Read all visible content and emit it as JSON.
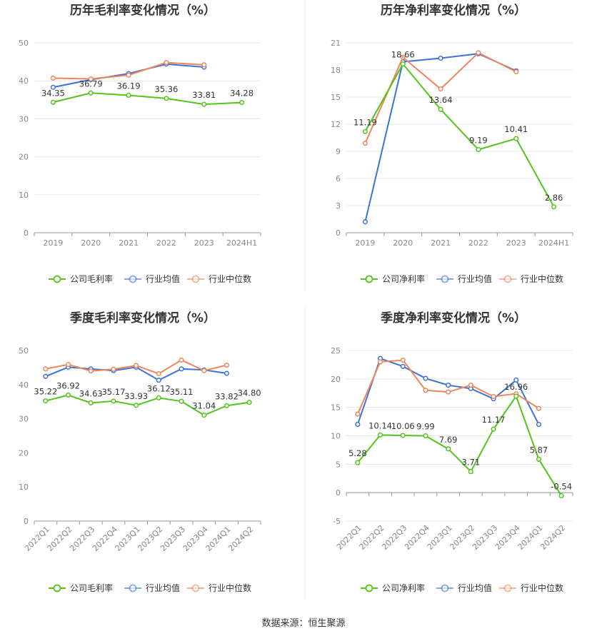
{
  "source": "数据来源：恒生聚源",
  "colors": {
    "company": "#52c41a",
    "avg": "#3b73d9",
    "median": "#f0845a",
    "grid": "#e8e8e8",
    "axis": "#999999"
  },
  "chart_data": [
    {
      "type": "line",
      "title": "历年毛利率变化情况（%）",
      "categories": [
        "2019",
        "2020",
        "2021",
        "2022",
        "2023",
        "2024H1"
      ],
      "ylim": [
        0,
        50
      ],
      "yticks": [
        0,
        10,
        20,
        30,
        40,
        50
      ],
      "grid": true,
      "legend": "bottom",
      "rotate_x": false,
      "series": [
        {
          "name": "公司毛利率",
          "key": "company",
          "values": [
            34.35,
            36.79,
            36.19,
            35.36,
            33.81,
            34.28
          ],
          "labels": [
            "34.35",
            "36.79",
            "36.19",
            "35.36",
            "33.81",
            "34.28"
          ]
        },
        {
          "name": "行业均值",
          "key": "avg",
          "values": [
            38.3,
            40.3,
            41.9,
            44.4,
            43.6,
            null
          ]
        },
        {
          "name": "行业中位数",
          "key": "median",
          "values": [
            40.7,
            40.5,
            41.5,
            44.8,
            44.2,
            null
          ]
        }
      ]
    },
    {
      "type": "line",
      "title": "历年净利率变化情况（%）",
      "categories": [
        "2019",
        "2020",
        "2021",
        "2022",
        "2023",
        "2024H1"
      ],
      "ylim": [
        0,
        21
      ],
      "yticks": [
        0,
        3,
        6,
        9,
        12,
        15,
        18,
        21
      ],
      "grid": true,
      "legend": "bottom",
      "rotate_x": false,
      "series": [
        {
          "name": "公司净利率",
          "key": "company",
          "values": [
            11.19,
            18.66,
            13.64,
            9.19,
            10.41,
            2.86
          ],
          "labels": [
            "11.19",
            "18.66",
            "13.64",
            "9.19",
            "10.41",
            "2.86"
          ]
        },
        {
          "name": "行业均值",
          "key": "avg",
          "values": [
            1.2,
            18.9,
            19.3,
            19.8,
            17.9,
            null
          ]
        },
        {
          "name": "行业中位数",
          "key": "median",
          "values": [
            9.9,
            19.4,
            15.9,
            19.9,
            17.8,
            null
          ]
        }
      ]
    },
    {
      "type": "line",
      "title": "季度毛利率变化情况（%）",
      "categories": [
        "2022Q1",
        "2022Q2",
        "2022Q3",
        "2022Q4",
        "2023Q1",
        "2023Q2",
        "2023Q3",
        "2023Q4",
        "2024Q1",
        "2024Q2"
      ],
      "ylim": [
        0,
        50
      ],
      "yticks": [
        0,
        10,
        20,
        30,
        40,
        50
      ],
      "grid": false,
      "legend": "bottom",
      "rotate_x": true,
      "series": [
        {
          "name": "公司毛利率",
          "key": "company",
          "values": [
            35.22,
            36.92,
            34.63,
            35.17,
            33.93,
            36.12,
            35.11,
            31.04,
            33.82,
            34.8
          ],
          "labels": [
            "35.22",
            "36.92",
            "34.63",
            "35.17",
            "33.93",
            "36.12",
            "35.11",
            "31.04",
            "33.82",
            "34.80"
          ]
        },
        {
          "name": "行业均值",
          "key": "avg",
          "values": [
            42.4,
            45.1,
            44.6,
            44.1,
            45.1,
            41.3,
            44.6,
            44.3,
            43.3,
            null
          ]
        },
        {
          "name": "行业中位数",
          "key": "median",
          "values": [
            44.6,
            45.9,
            44.0,
            44.5,
            45.6,
            43.2,
            47.2,
            44.1,
            45.7,
            null
          ]
        }
      ]
    },
    {
      "type": "line",
      "title": "季度净利率变化情况（%）",
      "categories": [
        "2022Q1",
        "2022Q2",
        "2022Q3",
        "2022Q4",
        "2023Q1",
        "2023Q2",
        "2023Q3",
        "2023Q4",
        "2024Q1",
        "2024Q2"
      ],
      "ylim": [
        -5,
        25
      ],
      "yticks": [
        -5,
        0,
        5,
        10,
        15,
        20,
        25
      ],
      "grid": true,
      "legend": "bottom",
      "rotate_x": true,
      "series": [
        {
          "name": "公司净利率",
          "key": "company",
          "values": [
            5.28,
            10.14,
            10.06,
            9.99,
            7.69,
            3.71,
            11.17,
            16.96,
            5.87,
            -0.54
          ],
          "labels": [
            "5.28",
            "10.14",
            "10.06",
            "9.99",
            "7.69",
            "3.71",
            "11.17",
            "16.96",
            "5.87",
            "-0.54"
          ]
        },
        {
          "name": "行业均值",
          "key": "avg",
          "values": [
            12.0,
            23.6,
            22.2,
            20.1,
            18.9,
            18.3,
            16.5,
            19.8,
            12.0,
            null
          ]
        },
        {
          "name": "行业中位数",
          "key": "median",
          "values": [
            13.8,
            23.0,
            23.3,
            18.0,
            17.7,
            18.9,
            16.9,
            17.4,
            14.8,
            null
          ]
        }
      ]
    }
  ]
}
